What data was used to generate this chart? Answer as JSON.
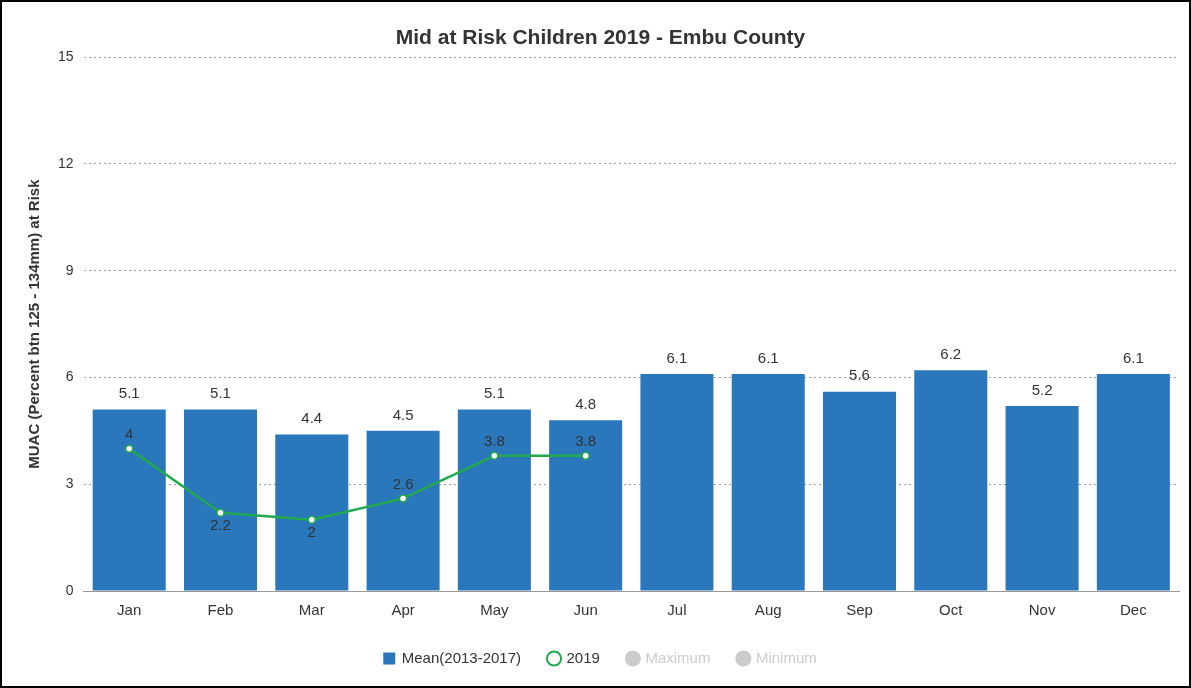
{
  "chart_data": {
    "type": "bar",
    "title": "Mid at Risk Children 2019 - Embu County",
    "ylabel": "MUAC (Percent btn 125 - 134mm) at Risk",
    "categories": [
      "Jan",
      "Feb",
      "Mar",
      "Apr",
      "May",
      "Jun",
      "Jul",
      "Aug",
      "Sep",
      "Oct",
      "Nov",
      "Dec"
    ],
    "series": [
      {
        "name": "Mean(2013-2017)",
        "color": "#2a77bb",
        "values": [
          5.1,
          5.1,
          4.4,
          4.5,
          5.1,
          4.8,
          6.1,
          6.1,
          5.6,
          6.2,
          5.2,
          6.1
        ]
      },
      {
        "name": "2019",
        "type": "line",
        "color": "#22a94f",
        "values": [
          4,
          2.2,
          2,
          2.6,
          3.8,
          3.8,
          null,
          null,
          null,
          null,
          null,
          null
        ]
      },
      {
        "name": "Maximum",
        "type": "line",
        "color": "#cccccc",
        "values": [
          null,
          null,
          null,
          null,
          null,
          null,
          null,
          null,
          null,
          null,
          null,
          null
        ]
      },
      {
        "name": "Minimum",
        "type": "line",
        "color": "#cccccc",
        "values": [
          null,
          null,
          null,
          null,
          null,
          null,
          null,
          null,
          null,
          null,
          null,
          null
        ]
      }
    ],
    "ylim": [
      0,
      15
    ],
    "yticks": [
      0,
      3,
      6,
      9,
      12,
      15
    ],
    "grid": "y",
    "legend": "bottom",
    "marker": "circle",
    "line_style": "solid",
    "data_labels": true
  }
}
